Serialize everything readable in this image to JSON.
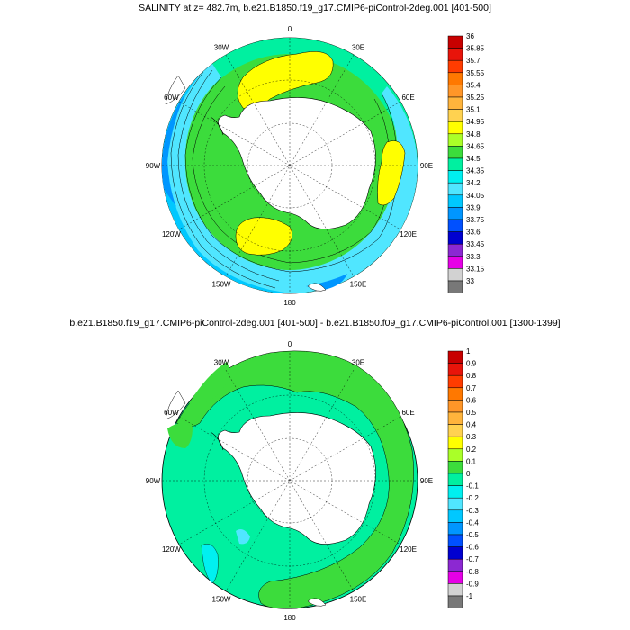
{
  "panels": [
    {
      "title": "SALINITY at z= 482.7m, b.e21.B1850.f19_g17.CMIP6-piControl-2deg.001 [401-500]",
      "lon_labels": [
        "0",
        "30E",
        "60E",
        "90E",
        "120E",
        "150E",
        "180",
        "150W",
        "120W",
        "90W",
        "60W",
        "30W"
      ],
      "colorbar": {
        "labels": [
          "36",
          "35.85",
          "35.7",
          "35.55",
          "35.4",
          "35.25",
          "35.1",
          "34.95",
          "34.8",
          "34.65",
          "34.5",
          "34.35",
          "34.2",
          "34.05",
          "33.9",
          "33.75",
          "33.6",
          "33.45",
          "33.3",
          "33.15",
          "33"
        ],
        "colors": [
          "#c80000",
          "#e8140a",
          "#ff3c00",
          "#ff7800",
          "#ff9628",
          "#ffb43c",
          "#ffd250",
          "#ffff00",
          "#aaff28",
          "#3cdc3c",
          "#00f0a0",
          "#00f0f0",
          "#50e6ff",
          "#00c8ff",
          "#0096ff",
          "#0050ff",
          "#0000d0",
          "#8c28d2",
          "#e600e6",
          "#d2d2d2",
          "#787878"
        ]
      }
    },
    {
      "title": "b.e21.B1850.f19_g17.CMIP6-piControl-2deg.001 [401-500] - b.e21.B1850.f09_g17.CMIP6-piControl.001 [1300-1399]",
      "lon_labels": [
        "0",
        "30E",
        "60E",
        "90E",
        "120E",
        "150E",
        "180",
        "150W",
        "120W",
        "90W",
        "60W",
        "30W"
      ],
      "colorbar": {
        "labels": [
          "1",
          "0.9",
          "0.8",
          "0.7",
          "0.6",
          "0.5",
          "0.4",
          "0.3",
          "0.2",
          "0.1",
          "0",
          "-0.1",
          "-0.2",
          "-0.3",
          "-0.4",
          "-0.5",
          "-0.6",
          "-0.7",
          "-0.8",
          "-0.9",
          "-1"
        ],
        "colors": [
          "#c80000",
          "#e8140a",
          "#ff3c00",
          "#ff7800",
          "#ff9628",
          "#ffb43c",
          "#ffd250",
          "#ffff00",
          "#aaff28",
          "#3cdc3c",
          "#00f0a0",
          "#00f0f0",
          "#50e6ff",
          "#00c8ff",
          "#0096ff",
          "#0050ff",
          "#0000d0",
          "#8c28d2",
          "#e600e6",
          "#d2d2d2",
          "#787878"
        ]
      }
    }
  ]
}
